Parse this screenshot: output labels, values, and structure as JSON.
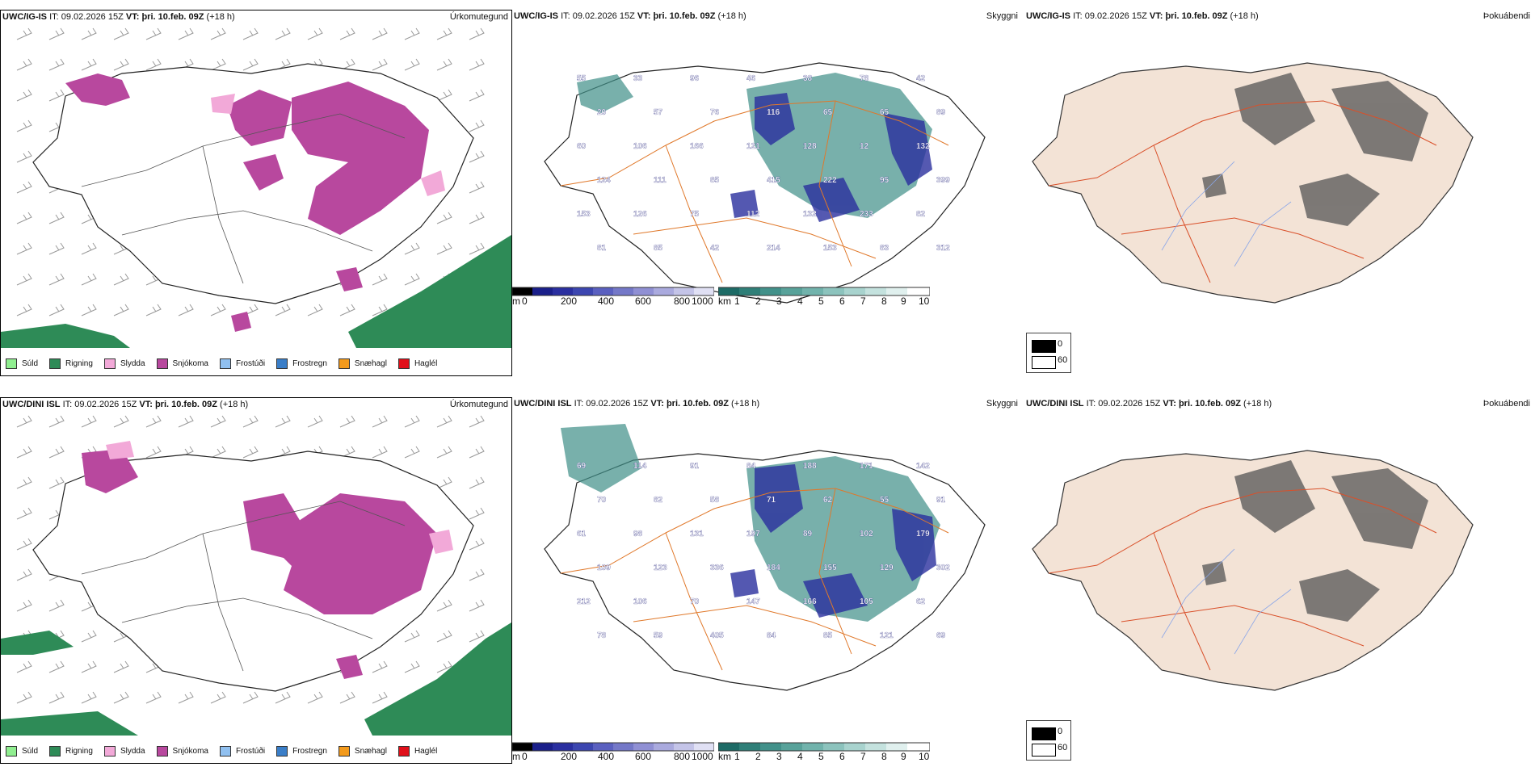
{
  "rows": [
    {
      "model": "UWC/IG-IS",
      "it_label": "IT:",
      "it_value": "09.02.2026 15Z",
      "vt_label": "VT:",
      "vt_value": "þri. 10.feb. 09Z",
      "lead": "(+18 h)",
      "precip_title": "Úrkomutegund",
      "vis_title": "Skyggni",
      "fog_title": "Þokuábendi",
      "visibility_labels": [
        "55",
        "33",
        "96",
        "46",
        "38",
        "78",
        "42",
        "20",
        "57",
        "76",
        "116",
        "65",
        "65",
        "89",
        "60",
        "106",
        "166",
        "121",
        "128",
        "12",
        "132",
        "124",
        "111",
        "85",
        "415",
        "222",
        "95",
        "399",
        "153",
        "126",
        "75",
        "112",
        "132",
        "233",
        "82",
        "81",
        "85",
        "42",
        "214",
        "153",
        "83",
        "312"
      ]
    },
    {
      "model": "UWC/DINI ISL",
      "it_label": "IT:",
      "it_value": "09.02.2026 15Z",
      "vt_label": "VT:",
      "vt_value": "þri. 10.feb. 09Z",
      "lead": "(+18 h)",
      "precip_title": "Úrkomutegund",
      "vis_title": "Skyggni",
      "fog_title": "Þokuábendi",
      "visibility_labels": [
        "69",
        "114",
        "91",
        "84",
        "188",
        "171",
        "142",
        "70",
        "82",
        "58",
        "71",
        "62",
        "55",
        "91",
        "61",
        "98",
        "131",
        "197",
        "89",
        "102",
        "179",
        "109",
        "123",
        "336",
        "184",
        "155",
        "129",
        "302",
        "212",
        "106",
        "70",
        "147",
        "166",
        "105",
        "62",
        "78",
        "59",
        "405",
        "84",
        "85",
        "121",
        "69"
      ]
    }
  ],
  "precip_legend": [
    {
      "label": "Súld",
      "color": "#90ee90"
    },
    {
      "label": "Rigning",
      "color": "#2e8b57"
    },
    {
      "label": "Slydda",
      "color": "#f2a9d8"
    },
    {
      "label": "Snjókoma",
      "color": "#b8489e"
    },
    {
      "label": "Frostúði",
      "color": "#90c0f0"
    },
    {
      "label": "Frostregn",
      "color": "#3a7ec8"
    },
    {
      "label": "Snæhagl",
      "color": "#f39a1c"
    },
    {
      "label": "Haglél",
      "color": "#e0101a"
    }
  ],
  "scales": {
    "height": {
      "unit": "m",
      "ticks": [
        "0",
        "200",
        "400",
        "600",
        "800",
        "1000"
      ]
    },
    "visibility": {
      "unit": "km",
      "ticks": [
        "1",
        "2",
        "3",
        "4",
        "5",
        "6",
        "7",
        "8",
        "9",
        "10"
      ]
    },
    "cloud": {
      "top": "0",
      "bottom": "60"
    }
  },
  "colors": {
    "rain": "#2e8b57",
    "snow": "#b8489e",
    "sleet": "#f2a9d8",
    "vis_teal": "#3f8f88",
    "vis_blue": "#2a2f9e",
    "roads": "#e0782a",
    "fog_land": "#f3e3d6",
    "fog_roads": "#d9502a"
  }
}
